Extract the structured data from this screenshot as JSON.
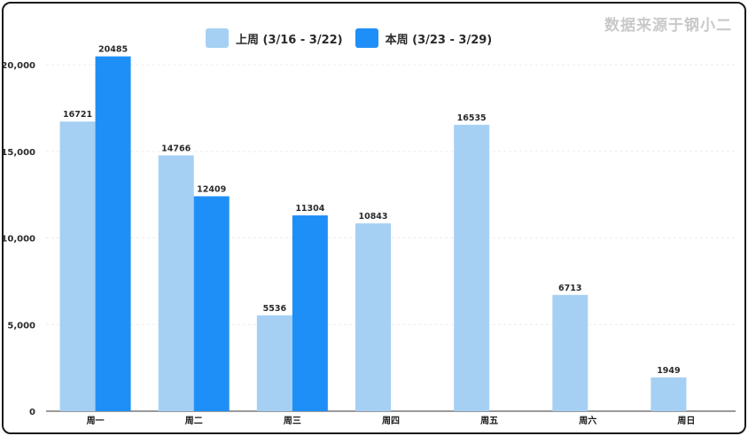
{
  "watermark": "数据来源于钢小二",
  "colors": {
    "last_week": "#a5d0f3",
    "this_week": "#1f8ff8"
  },
  "chart_data": {
    "type": "bar",
    "categories": [
      "周一",
      "周二",
      "周三",
      "周四",
      "周五",
      "周六",
      "周日"
    ],
    "series": [
      {
        "name": "上周 (3/16 - 3/22)",
        "values": [
          16721,
          14766,
          5536,
          10843,
          16535,
          6713,
          1949
        ]
      },
      {
        "name": "本周 (3/23 - 3/29)",
        "values": [
          20485,
          12409,
          11304,
          null,
          null,
          null,
          null
        ]
      }
    ],
    "ylim": [
      0,
      22000
    ],
    "yticks": [
      "0",
      "5,000",
      "10,000",
      "15,000",
      "20,000"
    ],
    "ytick_values": [
      0,
      5000,
      10000,
      15000,
      20000
    ],
    "grid": true,
    "legend_position": "top"
  }
}
